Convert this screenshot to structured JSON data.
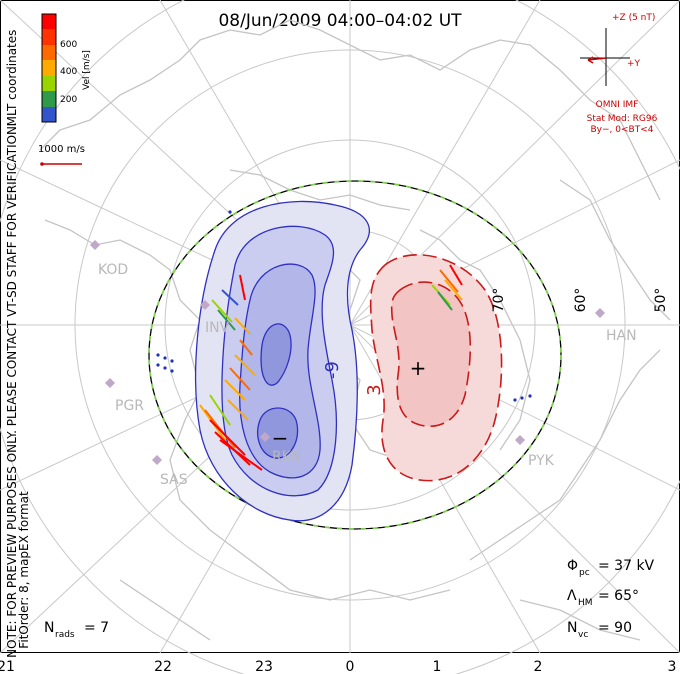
{
  "title": "08/Jun/2009 04:00–04:02 UT",
  "side_note": {
    "line1": "MLT coordinates",
    "line2": "NOTE: FOR PREVIEW PURPOSES ONLY. PLEASE CONTACT VT-SD STAFF FOR VERIFICATION.",
    "line3": "FitOrder: 8, mapEX format"
  },
  "colorbar": {
    "label": "Vel [m/s]",
    "ticks": [
      "600",
      "400",
      "200"
    ],
    "colors": [
      "#ff0000",
      "#ff6a00",
      "#ffaa00",
      "#9ad400",
      "#2e9a4a",
      "#3355cc",
      "#0000ff"
    ]
  },
  "reference_vector": {
    "label": "1000 m/s",
    "color": "#cc0000"
  },
  "imf_panel": {
    "z_label": "+Z (5 nT)",
    "y_label": "+Y",
    "source": "OMNI IMF",
    "model_line1": "Stat Mod: RG96",
    "model_line2": "By−, 0<BT<4",
    "color": "#cc0000"
  },
  "latitude_labels": [
    "70°",
    "60°",
    "50°"
  ],
  "mlt_labels": [
    "21",
    "22",
    "23",
    "0",
    "1",
    "2",
    "3"
  ],
  "stations": [
    {
      "code": "KOD"
    },
    {
      "code": "PGR"
    },
    {
      "code": "SAS"
    },
    {
      "code": "INV"
    },
    {
      "code": "RKN"
    },
    {
      "code": "HAN"
    },
    {
      "code": "PYK"
    }
  ],
  "potential_labels": {
    "negative": "-9",
    "positive": "3",
    "min_marker": "−",
    "max_marker": "+"
  },
  "stats": {
    "phi_pc": {
      "symbol": "Φ",
      "sub": "pc",
      "value": "= 37 kV"
    },
    "lambda_hm": {
      "symbol": "Λ",
      "sub": "HM",
      "value": "= 65°"
    },
    "n_vc": {
      "symbol": "N",
      "sub": "vc",
      "value": "= 90"
    },
    "n_rads": {
      "symbol": "N",
      "sub": "rads",
      "value": "= 7"
    }
  },
  "colors": {
    "negative_cell": "#3b3fc8",
    "positive_cell": "#cc1a1a",
    "grid": "#c8c8c8",
    "boundary_dash": "#7fcf4f"
  }
}
